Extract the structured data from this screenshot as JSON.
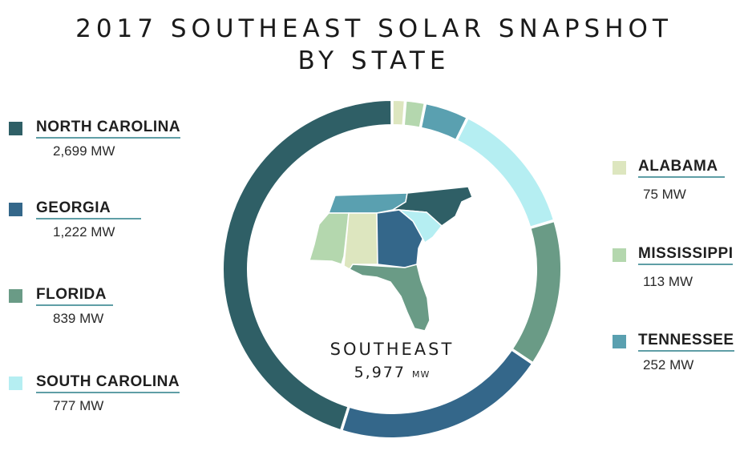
{
  "title": {
    "line1": "2017 SOUTHEAST SOLAR SNAPSHOT",
    "line2": "BY STATE"
  },
  "center": {
    "label": "SOUTHEAST",
    "value": "5,977",
    "unit": "MW"
  },
  "legend": {
    "north_carolina": {
      "name": "NORTH CAROLINA",
      "value": "2,699 MW",
      "color": "#2f5f66"
    },
    "georgia": {
      "name": "GEORGIA",
      "value": "1,222 MW",
      "color": "#34678a"
    },
    "florida": {
      "name": "FLORIDA",
      "value": "839 MW",
      "color": "#6a9b86"
    },
    "south_carolina": {
      "name": "SOUTH CAROLINA",
      "value": "777 MW",
      "color": "#b5eef2"
    },
    "alabama": {
      "name": "ALABAMA",
      "value": "75 MW",
      "color": "#dde6bf"
    },
    "mississippi": {
      "name": "MISSISSIPPI",
      "value": "113 MW",
      "color": "#b4d7ae"
    },
    "tennessee": {
      "name": "TENNESSEE",
      "value": "252 MW",
      "color": "#5aa0b0"
    }
  },
  "chart_data": {
    "type": "pie",
    "donut": true,
    "title": "2017 SOUTHEAST SOLAR SNAPSHOT BY STATE",
    "total": 5977,
    "unit": "MW",
    "slices": [
      {
        "label": "ALABAMA",
        "value": 75,
        "color": "#dde6bf"
      },
      {
        "label": "MISSISSIPPI",
        "value": 113,
        "color": "#b4d7ae"
      },
      {
        "label": "TENNESSEE",
        "value": 252,
        "color": "#5aa0b0"
      },
      {
        "label": "SOUTH CAROLINA",
        "value": 777,
        "color": "#b5eef2"
      },
      {
        "label": "FLORIDA",
        "value": 839,
        "color": "#6a9b86"
      },
      {
        "label": "GEORGIA",
        "value": 1222,
        "color": "#34678a"
      },
      {
        "label": "NORTH CAROLINA",
        "value": 2699,
        "color": "#2f5f66"
      }
    ]
  }
}
